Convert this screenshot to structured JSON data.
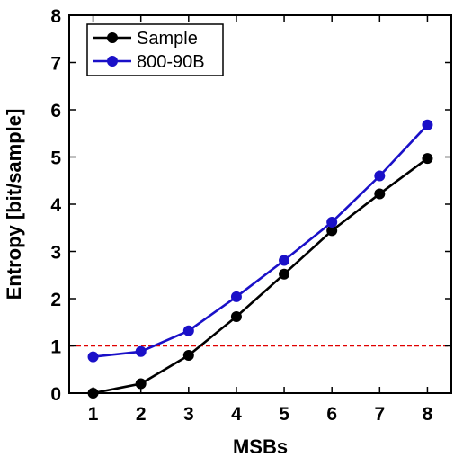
{
  "chart_data": {
    "type": "line",
    "x": [
      1,
      2,
      3,
      4,
      5,
      6,
      7,
      8
    ],
    "xlabel": "MSBs",
    "ylabel": "Entropy [bit/sample]",
    "xlim": [
      0.5,
      8.5
    ],
    "ylim": [
      0,
      8
    ],
    "xticks": [
      1,
      2,
      3,
      4,
      5,
      6,
      7,
      8
    ],
    "yticks": [
      0,
      1,
      2,
      3,
      4,
      5,
      6,
      7,
      8
    ],
    "grid": false,
    "legend_position": "top-left",
    "series": [
      {
        "name": "Sample",
        "color": "#000000",
        "marker": "circle",
        "values": [
          0.0,
          0.2,
          0.8,
          1.62,
          2.52,
          3.44,
          4.22,
          4.97
        ]
      },
      {
        "name": "800-90B",
        "color": "#1a10c8",
        "marker": "circle",
        "values": [
          0.77,
          0.88,
          1.32,
          2.04,
          2.81,
          3.62,
          4.6,
          5.68
        ]
      }
    ],
    "reference_lines": [
      {
        "y": 1,
        "color": "#e00000",
        "style": "dashed"
      }
    ]
  }
}
